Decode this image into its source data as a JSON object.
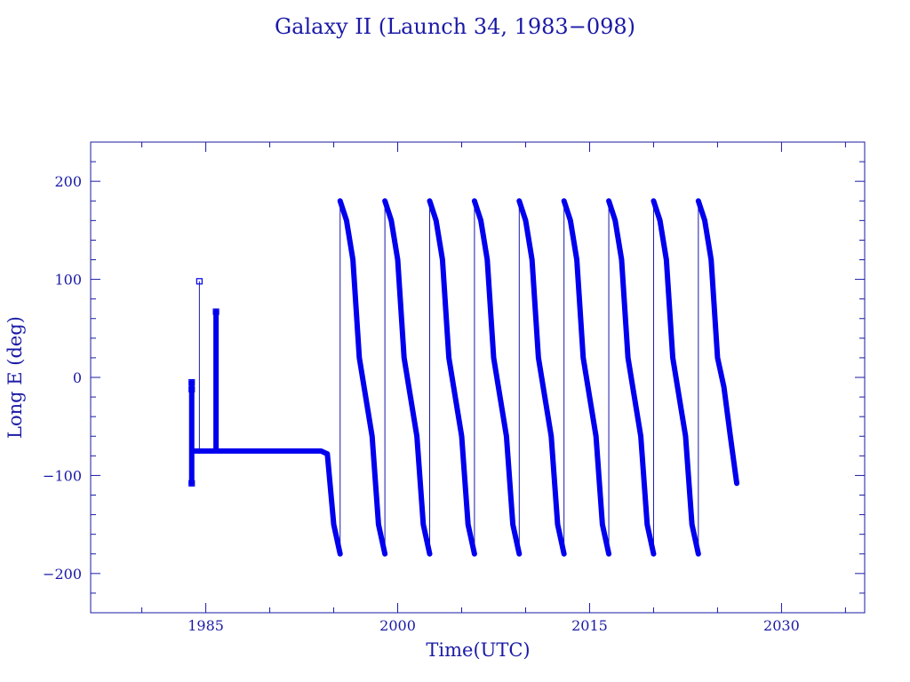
{
  "chart_data": {
    "type": "line",
    "title": "Galaxy II (Launch 34, 1983−098)",
    "xlabel": "Time(UTC)",
    "ylabel": "Long E (deg)",
    "xlim": [
      1976,
      2036.5
    ],
    "ylim": [
      -240,
      240
    ],
    "xticks": [
      1985,
      2000,
      2015,
      2030
    ],
    "yticks": [
      200,
      100,
      0,
      -100,
      -200
    ],
    "xtick_labels": [
      "1985",
      "2000",
      "2015",
      "2030"
    ],
    "ytick_labels": [
      "200",
      "100",
      "0",
      "−100",
      "−200"
    ],
    "grid": false,
    "colors": {
      "series": "#0000ee",
      "axes": "#1a1aa6"
    },
    "series": [
      {
        "points": [
          [
            1983.9,
            -75
          ],
          [
            1983.9,
            -108
          ],
          [
            1983.9,
            -75
          ],
          [
            1983.9,
            -5
          ],
          [
            1983.9,
            -12
          ],
          [
            1983.9,
            -75
          ],
          [
            1984.5,
            -75
          ],
          [
            1984.5,
            98
          ],
          [
            1984.5,
            -75
          ],
          [
            1985.8,
            -75
          ],
          [
            1985.8,
            67
          ],
          [
            1985.8,
            -75
          ],
          [
            1986,
            -75
          ],
          [
            1989,
            -75
          ],
          [
            1992,
            -75
          ],
          [
            1994,
            -75
          ],
          [
            1994.5,
            -78
          ],
          [
            1995.0,
            -150
          ],
          [
            1995.5,
            -180
          ],
          [
            1995.5,
            180
          ],
          [
            1996.0,
            160
          ],
          [
            1996.5,
            120
          ],
          [
            1997.0,
            20
          ],
          [
            1997.5,
            -20
          ],
          [
            1998.0,
            -60
          ],
          [
            1998.5,
            -150
          ],
          [
            1999.0,
            -180
          ],
          [
            1999.0,
            180
          ],
          [
            1999.5,
            160
          ],
          [
            2000.0,
            120
          ],
          [
            2000.5,
            20
          ],
          [
            2001.0,
            -20
          ],
          [
            2001.5,
            -60
          ],
          [
            2002.0,
            -150
          ],
          [
            2002.5,
            -180
          ],
          [
            2002.5,
            180
          ],
          [
            2003.0,
            160
          ],
          [
            2003.5,
            120
          ],
          [
            2004.0,
            20
          ],
          [
            2004.5,
            -20
          ],
          [
            2005.0,
            -60
          ],
          [
            2005.5,
            -150
          ],
          [
            2006.0,
            -180
          ],
          [
            2006.0,
            180
          ],
          [
            2006.5,
            160
          ],
          [
            2007.0,
            120
          ],
          [
            2007.5,
            20
          ],
          [
            2008.0,
            -20
          ],
          [
            2008.5,
            -60
          ],
          [
            2009.0,
            -150
          ],
          [
            2009.5,
            -180
          ],
          [
            2009.5,
            180
          ],
          [
            2010.0,
            160
          ],
          [
            2010.5,
            120
          ],
          [
            2011.0,
            20
          ],
          [
            2011.5,
            -20
          ],
          [
            2012.0,
            -60
          ],
          [
            2012.5,
            -150
          ],
          [
            2013.0,
            -180
          ],
          [
            2013.0,
            180
          ],
          [
            2013.5,
            160
          ],
          [
            2014.0,
            120
          ],
          [
            2014.5,
            20
          ],
          [
            2015.0,
            -20
          ],
          [
            2015.5,
            -60
          ],
          [
            2016.0,
            -150
          ],
          [
            2016.5,
            -180
          ],
          [
            2016.5,
            180
          ],
          [
            2017.0,
            160
          ],
          [
            2017.5,
            120
          ],
          [
            2018.0,
            20
          ],
          [
            2018.5,
            -20
          ],
          [
            2019.0,
            -60
          ],
          [
            2019.5,
            -150
          ],
          [
            2020.0,
            -180
          ],
          [
            2020.0,
            180
          ],
          [
            2020.5,
            160
          ],
          [
            2021.0,
            120
          ],
          [
            2021.5,
            20
          ],
          [
            2022.0,
            -20
          ],
          [
            2022.5,
            -60
          ],
          [
            2023.0,
            -150
          ],
          [
            2023.5,
            -180
          ],
          [
            2023.5,
            180
          ],
          [
            2024.0,
            160
          ],
          [
            2024.5,
            120
          ],
          [
            2025.0,
            20
          ],
          [
            2025.5,
            -10
          ],
          [
            2026.0,
            -60
          ],
          [
            2026.5,
            -108
          ]
        ]
      }
    ],
    "markers": [
      [
        1983.9,
        -108
      ],
      [
        1983.9,
        -5
      ],
      [
        1983.9,
        -12
      ],
      [
        1984.5,
        98
      ],
      [
        1985.8,
        67
      ]
    ]
  }
}
